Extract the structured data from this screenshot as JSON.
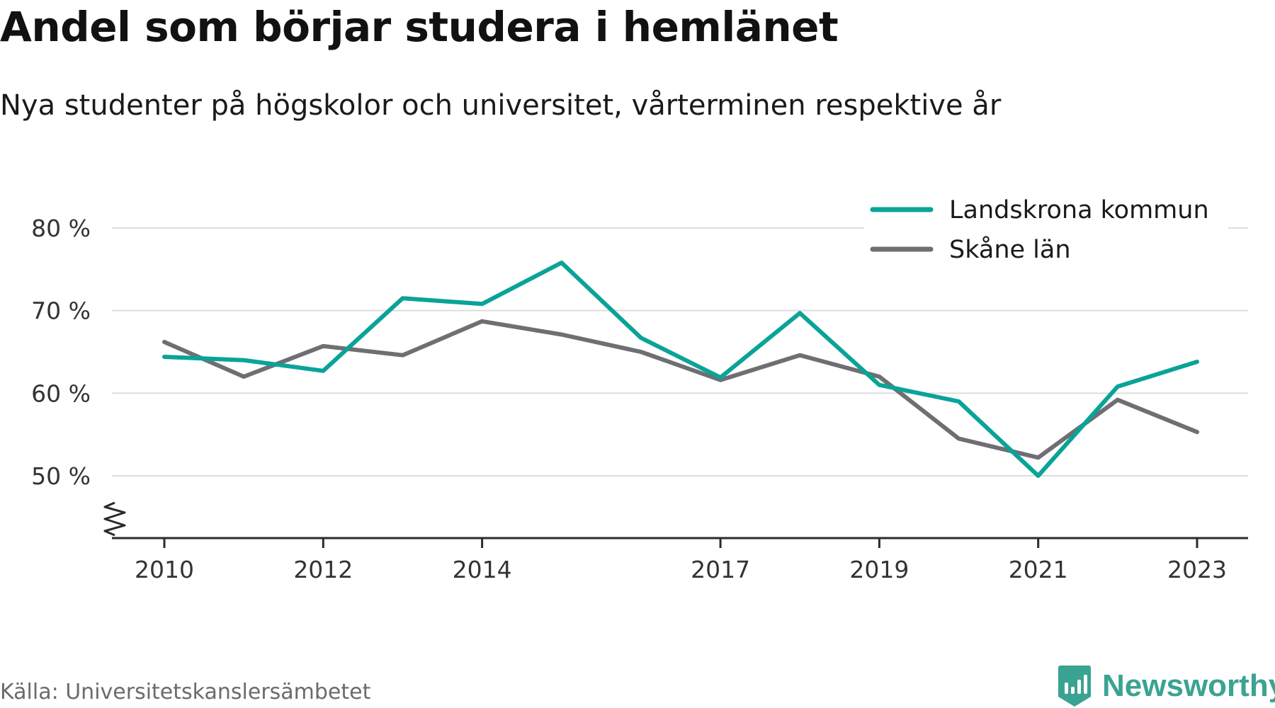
{
  "header": {
    "title": "Andel som börjar studera i hemlänet",
    "subtitle": "Nya studenter på högskolor och universitet, vårterminen respektive år"
  },
  "footer": {
    "source": "Källa: Universitetskanslersämbetet",
    "brand": "Newsworthy",
    "brand_icon": "bar-chart-icon",
    "brand_color": "#3aa391"
  },
  "chart_data": {
    "type": "line",
    "x": [
      2010,
      2011,
      2012,
      2013,
      2014,
      2015,
      2016,
      2017,
      2018,
      2019,
      2020,
      2021,
      2022,
      2023
    ],
    "x_tick_labels": [
      "2010",
      "2012",
      "2014",
      "2017",
      "2019",
      "2021",
      "2023"
    ],
    "y_ticks": [
      50,
      60,
      70,
      80
    ],
    "y_tick_labels": [
      "50 %",
      "60 %",
      "70 %",
      "80 %"
    ],
    "y_axis_break": true,
    "ylim": [
      42.5,
      81
    ],
    "grid": true,
    "legend_position": "top-right",
    "series": [
      {
        "name": "Landskrona kommun",
        "color": "#0aa398",
        "values": [
          64.4,
          64.0,
          62.7,
          71.5,
          70.8,
          75.8,
          66.7,
          61.9,
          69.7,
          61.0,
          59.0,
          50.0,
          60.8,
          63.8
        ]
      },
      {
        "name": "Skåne län",
        "color": "#6f6e73",
        "values": [
          66.2,
          62.0,
          65.7,
          64.6,
          68.7,
          67.1,
          65.0,
          61.6,
          64.6,
          62.0,
          54.5,
          52.2,
          59.2,
          55.3
        ]
      }
    ]
  }
}
